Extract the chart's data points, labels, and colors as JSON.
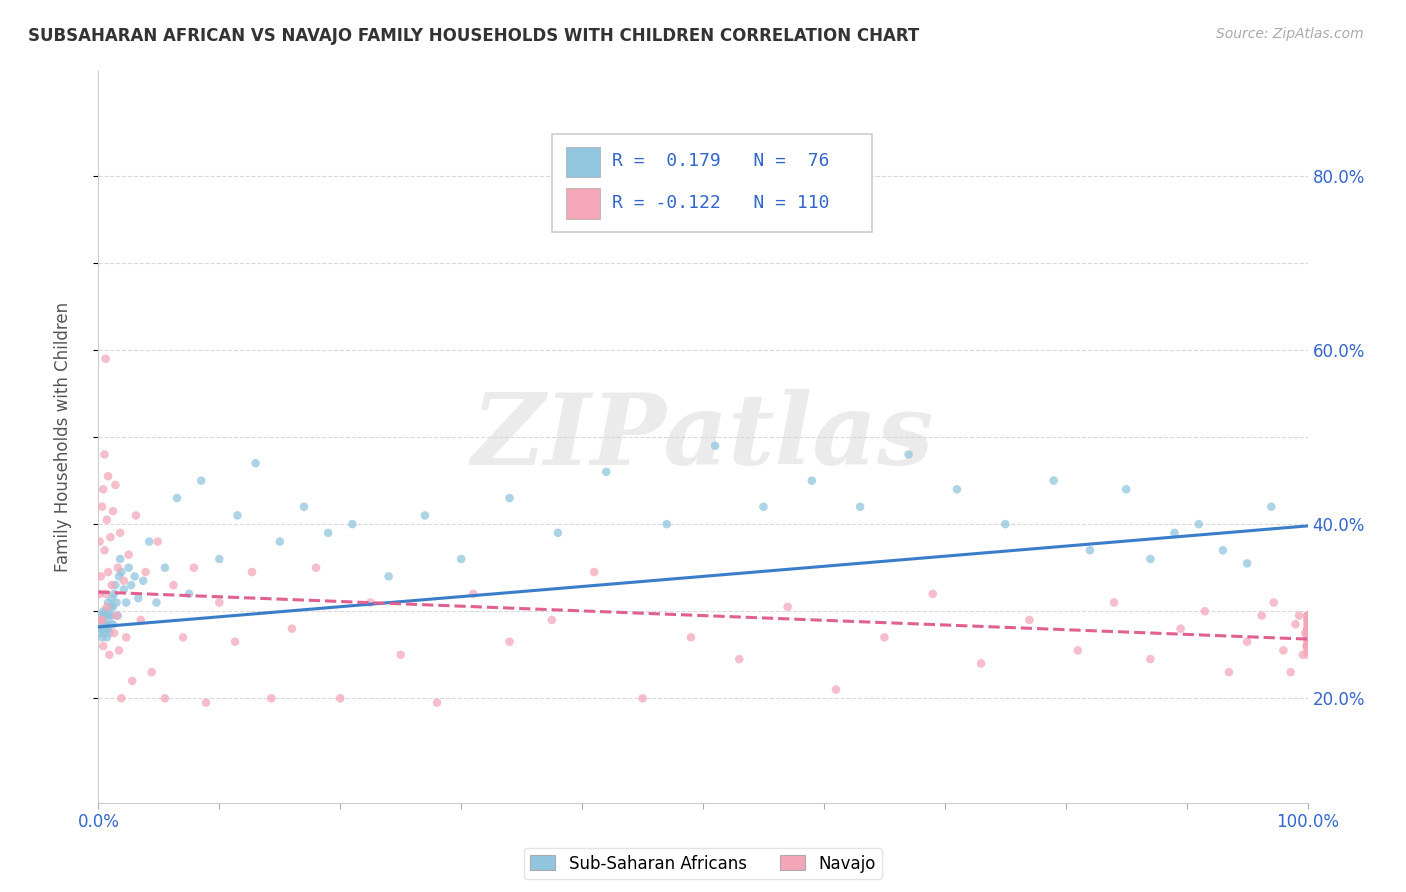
{
  "title": "SUBSAHARAN AFRICAN VS NAVAJO FAMILY HOUSEHOLDS WITH CHILDREN CORRELATION CHART",
  "source_text": "Source: ZipAtlas.com",
  "ylabel": "Family Households with Children",
  "blue_color": "#92c5de",
  "pink_color": "#f4a7b9",
  "blue_line_color": "#3a7dc9",
  "pink_line_color": "#e06090",
  "watermark": "ZIPatlas",
  "watermark_color": "#d8d8d8",
  "blue_R": "0.179",
  "blue_N": "76",
  "pink_R": "-0.122",
  "pink_N": "110",
  "xlim": [
    0.0,
    1.0
  ],
  "ylim": [
    0.08,
    0.92
  ],
  "yticks": [
    0.2,
    0.3,
    0.4,
    0.5,
    0.6,
    0.7,
    0.8
  ],
  "ytick_labels": [
    "20.0%",
    "",
    "40.0%",
    "",
    "60.0%",
    "",
    "80.0%"
  ],
  "xtick_labels_left": "0.0%",
  "xtick_labels_right": "100.0%",
  "grid_color": "#d5d5d5",
  "blue_scatter_x": [
    0.001,
    0.002,
    0.002,
    0.003,
    0.003,
    0.003,
    0.004,
    0.004,
    0.005,
    0.005,
    0.005,
    0.006,
    0.006,
    0.007,
    0.007,
    0.007,
    0.008,
    0.008,
    0.009,
    0.009,
    0.01,
    0.01,
    0.011,
    0.011,
    0.012,
    0.012,
    0.013,
    0.014,
    0.015,
    0.016,
    0.017,
    0.018,
    0.019,
    0.021,
    0.023,
    0.025,
    0.027,
    0.03,
    0.033,
    0.037,
    0.042,
    0.048,
    0.055,
    0.065,
    0.075,
    0.085,
    0.1,
    0.115,
    0.13,
    0.15,
    0.17,
    0.19,
    0.21,
    0.24,
    0.27,
    0.3,
    0.34,
    0.38,
    0.42,
    0.47,
    0.51,
    0.55,
    0.59,
    0.63,
    0.67,
    0.71,
    0.75,
    0.79,
    0.82,
    0.85,
    0.87,
    0.89,
    0.91,
    0.93,
    0.95,
    0.97
  ],
  "blue_scatter_y": [
    0.275,
    0.285,
    0.295,
    0.27,
    0.28,
    0.29,
    0.28,
    0.3,
    0.275,
    0.285,
    0.295,
    0.28,
    0.3,
    0.27,
    0.285,
    0.295,
    0.28,
    0.31,
    0.275,
    0.295,
    0.285,
    0.305,
    0.295,
    0.315,
    0.285,
    0.305,
    0.32,
    0.33,
    0.31,
    0.295,
    0.34,
    0.36,
    0.345,
    0.325,
    0.31,
    0.35,
    0.33,
    0.34,
    0.315,
    0.335,
    0.38,
    0.31,
    0.35,
    0.43,
    0.32,
    0.45,
    0.36,
    0.41,
    0.47,
    0.38,
    0.42,
    0.39,
    0.4,
    0.34,
    0.41,
    0.36,
    0.43,
    0.39,
    0.46,
    0.4,
    0.49,
    0.42,
    0.45,
    0.42,
    0.48,
    0.44,
    0.4,
    0.45,
    0.37,
    0.44,
    0.36,
    0.39,
    0.4,
    0.37,
    0.355,
    0.42
  ],
  "pink_scatter_x": [
    0.001,
    0.001,
    0.002,
    0.002,
    0.003,
    0.003,
    0.004,
    0.004,
    0.005,
    0.005,
    0.006,
    0.006,
    0.007,
    0.007,
    0.008,
    0.008,
    0.009,
    0.01,
    0.011,
    0.012,
    0.013,
    0.014,
    0.015,
    0.016,
    0.017,
    0.018,
    0.019,
    0.021,
    0.023,
    0.025,
    0.028,
    0.031,
    0.035,
    0.039,
    0.044,
    0.049,
    0.055,
    0.062,
    0.07,
    0.079,
    0.089,
    0.1,
    0.113,
    0.127,
    0.143,
    0.16,
    0.18,
    0.2,
    0.225,
    0.25,
    0.28,
    0.31,
    0.34,
    0.375,
    0.41,
    0.45,
    0.49,
    0.53,
    0.57,
    0.61,
    0.65,
    0.69,
    0.73,
    0.77,
    0.81,
    0.84,
    0.87,
    0.895,
    0.915,
    0.935,
    0.95,
    0.962,
    0.972,
    0.98,
    0.986,
    0.99,
    0.993,
    0.996,
    0.998,
    0.999,
    1.0,
    1.0,
    1.0,
    1.0,
    1.0,
    1.0,
    1.0,
    1.0,
    1.0,
    1.0,
    1.0,
    1.0,
    1.0,
    1.0,
    1.0,
    1.0,
    1.0,
    1.0,
    1.0,
    1.0,
    1.0,
    1.0,
    1.0,
    1.0,
    1.0,
    1.0,
    1.0,
    1.0,
    1.0,
    1.0
  ],
  "pink_scatter_y": [
    0.38,
    0.32,
    0.34,
    0.29,
    0.42,
    0.29,
    0.44,
    0.26,
    0.37,
    0.48,
    0.32,
    0.59,
    0.305,
    0.405,
    0.345,
    0.455,
    0.25,
    0.385,
    0.33,
    0.415,
    0.275,
    0.445,
    0.295,
    0.35,
    0.255,
    0.39,
    0.2,
    0.335,
    0.27,
    0.365,
    0.22,
    0.41,
    0.29,
    0.345,
    0.23,
    0.38,
    0.2,
    0.33,
    0.27,
    0.35,
    0.195,
    0.31,
    0.265,
    0.345,
    0.2,
    0.28,
    0.35,
    0.2,
    0.31,
    0.25,
    0.195,
    0.32,
    0.265,
    0.29,
    0.345,
    0.2,
    0.27,
    0.245,
    0.305,
    0.21,
    0.27,
    0.32,
    0.24,
    0.29,
    0.255,
    0.31,
    0.245,
    0.28,
    0.3,
    0.23,
    0.265,
    0.295,
    0.31,
    0.255,
    0.23,
    0.285,
    0.295,
    0.25,
    0.275,
    0.26,
    0.29,
    0.25,
    0.275,
    0.295,
    0.26,
    0.28,
    0.295,
    0.26,
    0.275,
    0.29,
    0.255,
    0.28,
    0.295,
    0.265,
    0.28,
    0.255,
    0.27,
    0.29,
    0.26,
    0.275,
    0.285,
    0.26,
    0.28,
    0.275,
    0.285,
    0.26,
    0.275,
    0.265,
    0.28,
    0.27
  ],
  "blue_trend_x": [
    0.0,
    1.0
  ],
  "blue_trend_y": [
    0.282,
    0.398
  ],
  "pink_trend_x": [
    0.0,
    1.0
  ],
  "pink_trend_y": [
    0.322,
    0.268
  ]
}
